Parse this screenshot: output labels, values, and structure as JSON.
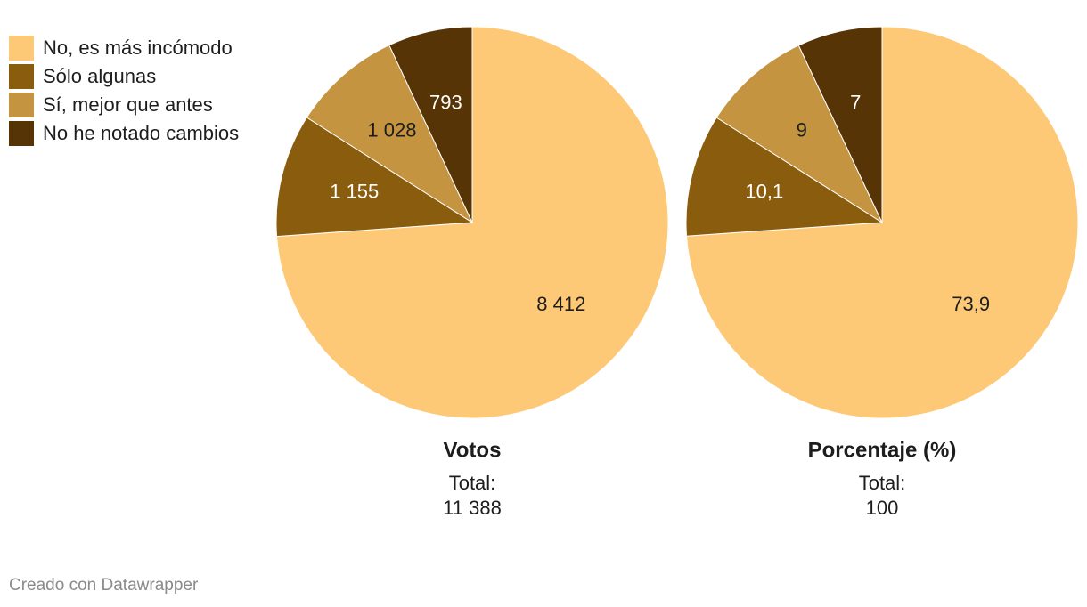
{
  "chart_data": [
    {
      "type": "pie",
      "title": "Votos",
      "categories": [
        "No, es más incómodo",
        "Sólo algunas",
        "Sí, mejor que antes",
        "No he notado cambios"
      ],
      "values": [
        8412,
        1155,
        1028,
        793
      ],
      "value_labels": [
        "8 412",
        "1 155",
        "1 028",
        "793"
      ],
      "colors": [
        "#fdc977",
        "#8a5d0e",
        "#c59441",
        "#573405"
      ],
      "subtitle": "Total:",
      "total": {
        "value": 11388,
        "label": "11 388"
      }
    },
    {
      "type": "pie",
      "title": "Porcentaje (%)",
      "categories": [
        "No, es más incómodo",
        "Sólo algunas",
        "Sí, mejor que antes",
        "No he notado cambios"
      ],
      "values": [
        73.9,
        10.1,
        9,
        7
      ],
      "value_labels": [
        "73,9",
        "10,1",
        "9",
        "7"
      ],
      "colors": [
        "#fdc977",
        "#8a5d0e",
        "#c59441",
        "#573405"
      ],
      "subtitle": "Total:",
      "total": 100
    }
  ],
  "footer": "Creado con Datawrapper"
}
